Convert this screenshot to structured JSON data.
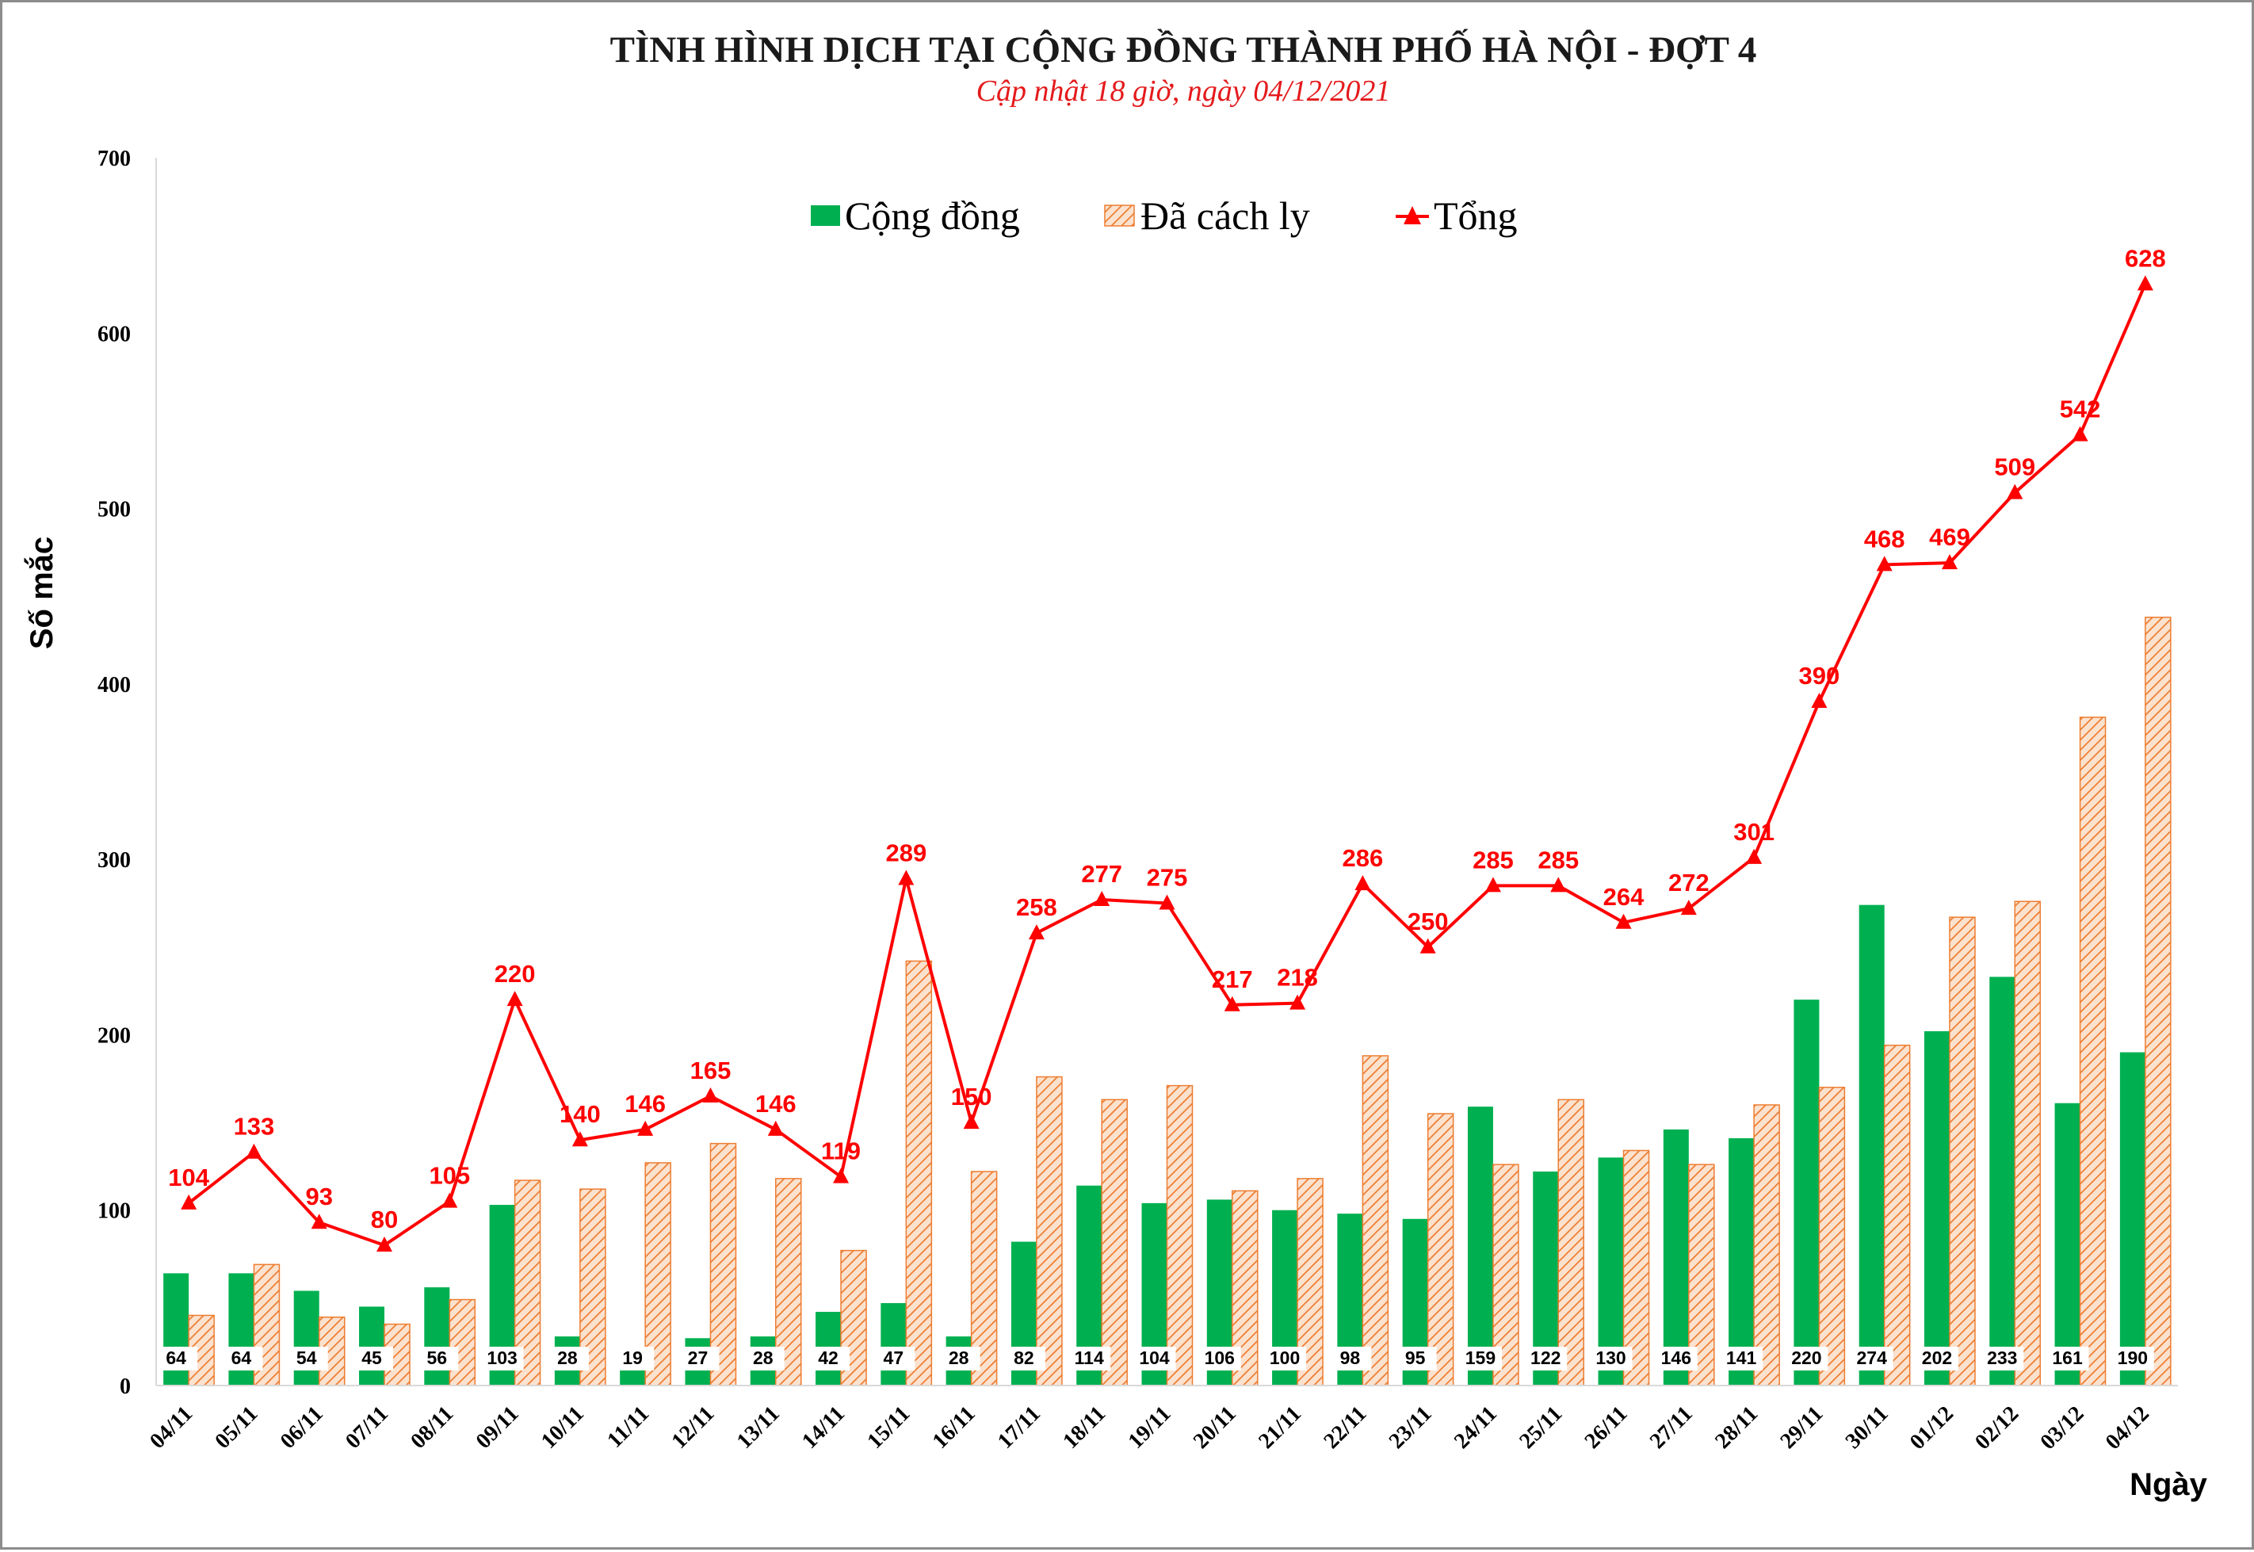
{
  "chart_data": {
    "type": "bar",
    "title": "TÌNH HÌNH DỊCH TẠI CỘNG ĐỒNG THÀNH PHỐ HÀ NỘI - ĐỢT 4",
    "subtitle": "Cập nhật 18 giờ, ngày 04/12/2021",
    "xlabel": "Ngày",
    "ylabel": "Số mắc",
    "ylim": [
      0,
      700
    ],
    "yticks": [
      0,
      100,
      200,
      300,
      400,
      500,
      600,
      700
    ],
    "grid": false,
    "legend_position": "top-center",
    "colors": {
      "community": "#00b050",
      "quarantined": "#f4b183",
      "quarantined_hatch": "#ed7d31",
      "total": "#ff0000"
    },
    "categories": [
      "04/11",
      "05/11",
      "06/11",
      "07/11",
      "08/11",
      "09/11",
      "10/11",
      "11/11",
      "12/11",
      "13/11",
      "14/11",
      "15/11",
      "16/11",
      "17/11",
      "18/11",
      "19/11",
      "20/11",
      "21/11",
      "22/11",
      "23/11",
      "24/11",
      "25/11",
      "26/11",
      "27/11",
      "28/11",
      "29/11",
      "30/11",
      "01/12",
      "02/12",
      "03/12",
      "04/12"
    ],
    "series": [
      {
        "name": "Cộng đồng",
        "type": "bar",
        "values": [
          64,
          64,
          54,
          45,
          56,
          103,
          28,
          19,
          27,
          28,
          42,
          47,
          28,
          82,
          114,
          104,
          106,
          100,
          98,
          95,
          159,
          122,
          130,
          146,
          141,
          220,
          274,
          202,
          233,
          161,
          190
        ]
      },
      {
        "name": "Đã cách ly",
        "type": "bar",
        "values": [
          40,
          69,
          39,
          35,
          49,
          117,
          112,
          127,
          138,
          118,
          77,
          242,
          122,
          176,
          163,
          171,
          111,
          118,
          188,
          155,
          126,
          163,
          134,
          126,
          160,
          170,
          194,
          267,
          276,
          381,
          438
        ]
      },
      {
        "name": "Tổng",
        "type": "line",
        "values": [
          104,
          133,
          93,
          80,
          105,
          220,
          140,
          146,
          165,
          146,
          119,
          289,
          150,
          258,
          277,
          275,
          217,
          218,
          286,
          250,
          285,
          285,
          264,
          272,
          301,
          390,
          468,
          469,
          509,
          542,
          628
        ]
      }
    ]
  }
}
